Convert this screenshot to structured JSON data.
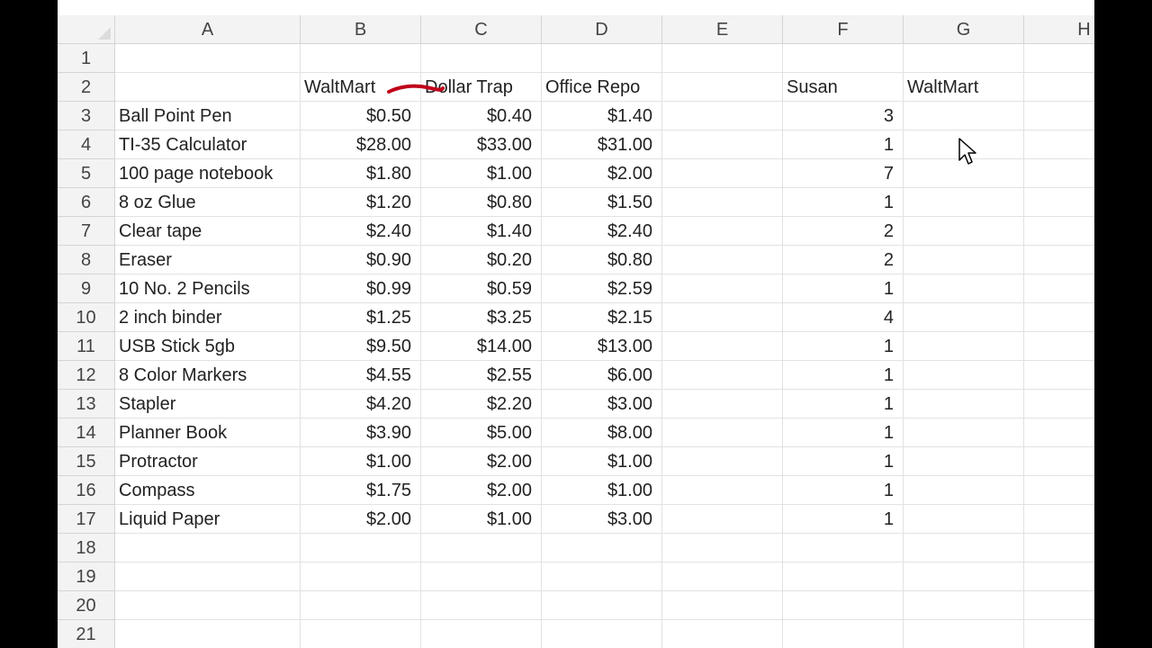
{
  "columns": [
    "A",
    "B",
    "C",
    "D",
    "E",
    "F",
    "G",
    "H"
  ],
  "header_row": {
    "a": "",
    "b": "WaltMart",
    "c": "Dollar Trap",
    "d": "Office Repo",
    "e": "",
    "f": "Susan",
    "g": "WaltMart",
    "h": ""
  },
  "items": [
    {
      "row": "3",
      "name": "Ball Point Pen",
      "b": "$0.50",
      "c": "$0.40",
      "d": "$1.40",
      "f": "3",
      "g": ""
    },
    {
      "row": "4",
      "name": "TI-35 Calculator",
      "b": "$28.00",
      "c": "$33.00",
      "d": "$31.00",
      "f": "1",
      "g": ""
    },
    {
      "row": "5",
      "name": "100 page notebook",
      "b": "$1.80",
      "c": "$1.00",
      "d": "$2.00",
      "f": "7",
      "g": ""
    },
    {
      "row": "6",
      "name": "8 oz Glue",
      "b": "$1.20",
      "c": "$0.80",
      "d": "$1.50",
      "f": "1",
      "g": ""
    },
    {
      "row": "7",
      "name": "Clear tape",
      "b": "$2.40",
      "c": "$1.40",
      "d": "$2.40",
      "f": "2",
      "g": ""
    },
    {
      "row": "8",
      "name": "Eraser",
      "b": "$0.90",
      "c": "$0.20",
      "d": "$0.80",
      "f": "2",
      "g": ""
    },
    {
      "row": "9",
      "name": "10 No. 2 Pencils",
      "b": "$0.99",
      "c": "$0.59",
      "d": "$2.59",
      "f": "1",
      "g": ""
    },
    {
      "row": "10",
      "name": "2 inch binder",
      "b": "$1.25",
      "c": "$3.25",
      "d": "$2.15",
      "f": "4",
      "g": ""
    },
    {
      "row": "11",
      "name": "USB Stick 5gb",
      "b": "$9.50",
      "c": "$14.00",
      "d": "$13.00",
      "f": "1",
      "g": ""
    },
    {
      "row": "12",
      "name": "8 Color Markers",
      "b": "$4.55",
      "c": "$2.55",
      "d": "$6.00",
      "f": "1",
      "g": ""
    },
    {
      "row": "13",
      "name": "Stapler",
      "b": "$4.20",
      "c": "$2.20",
      "d": "$3.00",
      "f": "1",
      "g": ""
    },
    {
      "row": "14",
      "name": "Planner Book",
      "b": "$3.90",
      "c": "$5.00",
      "d": "$8.00",
      "f": "1",
      "g": ""
    },
    {
      "row": "15",
      "name": "Protractor",
      "b": "$1.00",
      "c": "$2.00",
      "d": "$1.00",
      "f": "1",
      "g": ""
    },
    {
      "row": "16",
      "name": "Compass",
      "b": "$1.75",
      "c": "$2.00",
      "d": "$1.00",
      "f": "1",
      "g": ""
    },
    {
      "row": "17",
      "name": "Liquid Paper",
      "b": "$2.00",
      "c": "$1.00",
      "d": "$3.00",
      "f": "1",
      "g": ""
    }
  ],
  "empty_rows": [
    "1",
    "18",
    "19",
    "20",
    "21"
  ],
  "colors": {
    "ink_mark": "#c0001a",
    "header_bg": "#f3f3f3",
    "gridline": "#e2e2e2"
  }
}
